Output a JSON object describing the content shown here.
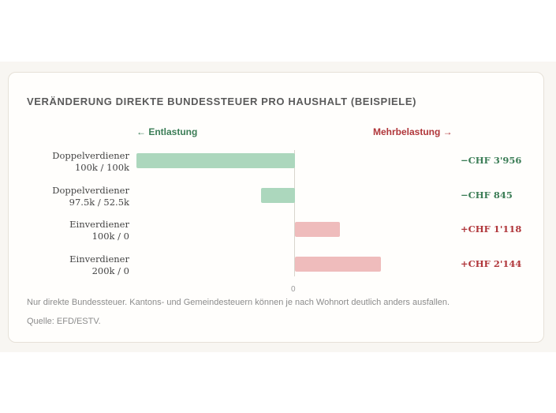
{
  "chart_data": {
    "type": "bar",
    "orientation": "horizontal",
    "title": "VERÄNDERUNG DIREKTE BUNDESSTEUER PRO HAUSHALT (BEISPIELE)",
    "direction_labels": {
      "left": "← Entlastung",
      "right": "Mehrbelastung →"
    },
    "categories": [
      {
        "name": "Doppelverdiener",
        "sub": "100k / 100k"
      },
      {
        "name": "Doppelverdiener",
        "sub": "97.5k / 52.5k"
      },
      {
        "name": "Einverdiener",
        "sub": "100k / 0"
      },
      {
        "name": "Einverdiener",
        "sub": "200k / 0"
      }
    ],
    "values": [
      -3956,
      -845,
      1118,
      2144
    ],
    "value_labels": [
      "−CHF 3'956",
      "−CHF 845",
      "+CHF 1'118",
      "+CHF 2'144"
    ],
    "zero_tick": "0",
    "colors": {
      "negative": "#acd7bd",
      "positive": "#efbcbc",
      "negative_text": "#3b7d56",
      "positive_text": "#b0363a"
    },
    "grid": false
  },
  "footer": {
    "note": "Nur direkte Bundessteuer. Kantons- und Gemeindesteuern können je nach Wohnort deutlich anders ausfallen.",
    "source": "Quelle: EFD/ESTV."
  }
}
